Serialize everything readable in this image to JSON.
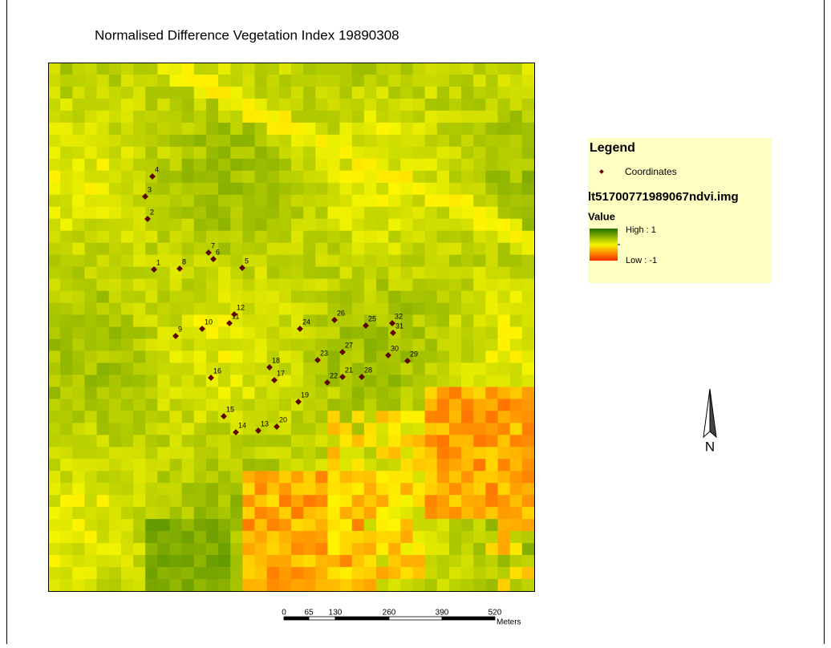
{
  "title": "Normalised Difference Vegetation Index 19890308",
  "legend": {
    "title": "Legend",
    "points_label": "Coordinates",
    "layer": "lt51700771989067ndvi.img",
    "field": "Value",
    "high": "High : 1",
    "low": "Low : -1"
  },
  "points": [
    "1",
    "2",
    "3",
    "4",
    "5",
    "6",
    "7",
    "8",
    "9",
    "10",
    "11",
    "12",
    "13",
    "14",
    "15",
    "16",
    "17",
    "18",
    "19",
    "20",
    "21",
    "22",
    "23",
    "24",
    "25",
    "26",
    "27",
    "28",
    "29",
    "30",
    "31",
    "32"
  ],
  "scale_bar": {
    "labels": [
      0,
      65,
      130,
      260,
      390,
      520
    ],
    "unit": "Meters"
  },
  "north": "N"
}
